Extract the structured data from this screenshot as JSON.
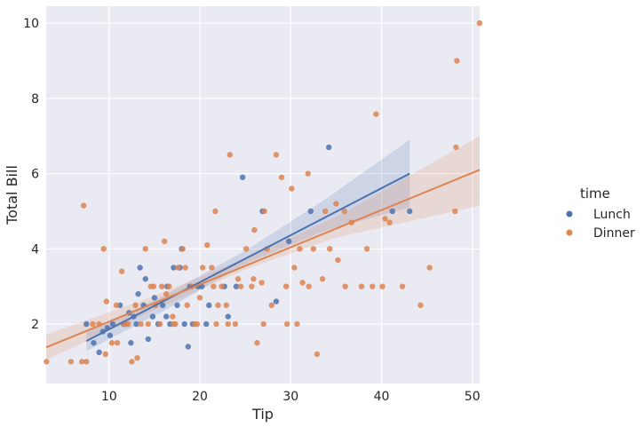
{
  "chart_data": {
    "type": "scatter",
    "title": "",
    "xlabel": "Tip",
    "ylabel": "Total Bill",
    "xlim": [
      3.07,
      50.81
    ],
    "ylim": [
      0.42,
      10.45
    ],
    "xticks": [
      10,
      20,
      30,
      40,
      50
    ],
    "yticks": [
      2,
      4,
      6,
      8,
      10
    ],
    "grid": true,
    "legend": {
      "title": "time",
      "placement": "right"
    },
    "series": [
      {
        "name": "Lunch",
        "color": "#4c72b0",
        "x": [
          7.5,
          8.3,
          8.9,
          9.3,
          10.1,
          10.4,
          11.2,
          11.6,
          12.4,
          12.7,
          13.0,
          13.4,
          13.8,
          14.3,
          14.8,
          15.4,
          15.9,
          16.4,
          16.7,
          17.1,
          17.5,
          18.0,
          18.3,
          18.7,
          19.2,
          19.8,
          20.2,
          21.0,
          22.7,
          23.1,
          24.0,
          24.7,
          26.9,
          28.4,
          29.8,
          32.2,
          34.2,
          41.2,
          43.1,
          12.2,
          15.0,
          17.8,
          20.7,
          13.2,
          9.8,
          16.3,
          14.0,
          18.9
        ],
        "y": [
          2.0,
          1.5,
          1.25,
          1.8,
          1.7,
          2.0,
          2.5,
          2.0,
          1.5,
          2.2,
          2.0,
          3.5,
          2.5,
          1.6,
          2.2,
          2.0,
          2.5,
          3.0,
          2.0,
          3.5,
          2.5,
          4.0,
          2.0,
          1.4,
          2.0,
          3.0,
          3.0,
          2.5,
          3.0,
          2.2,
          3.0,
          5.9,
          5.0,
          2.6,
          4.2,
          5.0,
          6.7,
          5.0,
          5.0,
          2.3,
          2.7,
          3.5,
          2.0,
          2.8,
          1.9,
          2.2,
          3.2,
          3.0
        ]
      },
      {
        "name": "Dinner",
        "color": "#dd8452",
        "x": [
          3.1,
          5.8,
          7.2,
          7.5,
          8.2,
          8.9,
          9.4,
          9.7,
          10.3,
          10.8,
          11.4,
          11.9,
          12.5,
          12.9,
          13.5,
          14.0,
          14.6,
          15.1,
          15.6,
          16.1,
          16.6,
          17.1,
          17.6,
          18.1,
          18.6,
          19.1,
          19.7,
          20.3,
          20.8,
          21.3,
          21.8,
          22.4,
          22.9,
          23.3,
          23.9,
          24.5,
          25.1,
          25.7,
          26.3,
          26.8,
          27.4,
          27.9,
          28.4,
          29.0,
          29.5,
          30.1,
          30.7,
          31.3,
          31.9,
          32.5,
          32.9,
          33.5,
          34.3,
          35.0,
          35.9,
          36.7,
          37.8,
          38.4,
          39.4,
          40.1,
          40.9,
          42.3,
          44.3,
          45.3,
          48.3,
          48.2,
          50.8,
          48.1,
          9.6,
          13.1,
          14.3,
          15.8,
          17.0,
          19.4,
          21.7,
          23.1,
          25.9,
          27.1,
          30.4,
          33.8,
          7.0,
          10.9,
          12.1,
          16.3,
          18.4,
          20.0,
          21.5,
          24.2,
          27.0,
          29.6,
          31.0,
          35.2,
          39.0,
          11.6,
          14.9,
          17.3,
          22.0,
          26.0,
          32.0,
          36.0,
          40.4
        ],
        "y": [
          1.0,
          1.0,
          5.15,
          1.0,
          2.0,
          2.0,
          4.0,
          2.6,
          1.5,
          2.5,
          3.4,
          2.0,
          1.0,
          2.5,
          2.0,
          4.0,
          3.0,
          2.5,
          2.0,
          4.2,
          3.0,
          2.0,
          3.5,
          4.0,
          2.5,
          3.0,
          2.0,
          3.5,
          4.1,
          3.5,
          2.0,
          3.0,
          2.5,
          6.5,
          2.0,
          3.0,
          4.0,
          3.0,
          1.5,
          3.1,
          4.0,
          2.5,
          6.5,
          5.9,
          3.0,
          5.6,
          2.0,
          3.1,
          6.0,
          4.0,
          1.2,
          3.2,
          4.0,
          5.2,
          5.0,
          4.7,
          3.0,
          4.0,
          7.58,
          3.0,
          4.7,
          3.0,
          2.5,
          3.5,
          9.0,
          6.7,
          10.0,
          5.0,
          1.2,
          1.1,
          2.0,
          3.0,
          2.2,
          2.0,
          5.0,
          2.0,
          3.2,
          5.0,
          3.5,
          5.0,
          1.0,
          1.5,
          2.0,
          2.8,
          3.5,
          2.7,
          3.0,
          3.2,
          2.0,
          2.0,
          4.0,
          3.7,
          3.0,
          2.0,
          3.0,
          2.0,
          2.5,
          4.5,
          3.0,
          3.0,
          4.8
        ]
      }
    ],
    "fits": [
      {
        "name": "Lunch",
        "color": "#4c72b0",
        "x_range": [
          7.5,
          43.1
        ],
        "line": [
          [
            7.5,
            1.55
          ],
          [
            43.1,
            6.0
          ]
        ],
        "ci_upper": [
          [
            7.5,
            1.8
          ],
          [
            16.0,
            2.75
          ],
          [
            25.0,
            3.95
          ],
          [
            34.0,
            5.35
          ],
          [
            43.1,
            6.9
          ]
        ],
        "ci_lower": [
          [
            7.5,
            1.28
          ],
          [
            16.0,
            2.35
          ],
          [
            25.0,
            3.6
          ],
          [
            34.0,
            4.5
          ],
          [
            43.1,
            5.1
          ]
        ]
      },
      {
        "name": "Dinner",
        "color": "#dd8452",
        "x_range": [
          3.07,
          50.81
        ],
        "line": [
          [
            3.07,
            1.38
          ],
          [
            50.81,
            6.1
          ]
        ],
        "ci_upper": [
          [
            3.07,
            1.72
          ],
          [
            15.0,
            2.75
          ],
          [
            25.0,
            3.75
          ],
          [
            35.0,
            4.85
          ],
          [
            50.81,
            7.0
          ]
        ],
        "ci_lower": [
          [
            3.07,
            1.05
          ],
          [
            15.0,
            2.38
          ],
          [
            25.0,
            3.45
          ],
          [
            35.0,
            4.3
          ],
          [
            50.81,
            5.15
          ]
        ]
      }
    ]
  }
}
